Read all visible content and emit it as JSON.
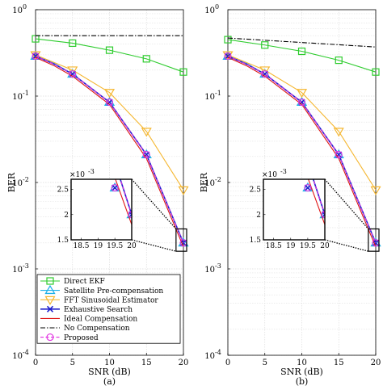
{
  "chart_data": [
    {
      "type": "line",
      "panel_label": "(a)",
      "xlabel": "SNR (dB)",
      "ylabel": "BER",
      "xlim": [
        0,
        20
      ],
      "ylim": [
        0.0001,
        1
      ],
      "yscale": "log",
      "grid": true,
      "xticks": [
        "0",
        "5",
        "10",
        "15",
        "20"
      ],
      "yticks": [
        {
          "base": "10",
          "exp": "0"
        },
        {
          "base": "10",
          "exp": "-1"
        },
        {
          "base": "10",
          "exp": "-2"
        },
        {
          "base": "10",
          "exp": "-3"
        },
        {
          "base": "10",
          "exp": "-4"
        }
      ],
      "legend_position": "bottom-left",
      "series": [
        {
          "name": "Direct EKF",
          "color": "#2ecc2e",
          "marker": "square",
          "dash": "solid",
          "x": [
            0,
            5,
            10,
            15,
            20
          ],
          "y": [
            0.46,
            0.41,
            0.34,
            0.27,
            0.19
          ]
        },
        {
          "name": "Satellite Pre-compensation",
          "color": "#1fb0e8",
          "marker": "triangle-up",
          "dash": "solid",
          "x": [
            0,
            2.5,
            5,
            10,
            15,
            20
          ],
          "y": [
            0.29,
            0.24,
            0.18,
            0.085,
            0.021,
            0.002
          ]
        },
        {
          "name": "FFT Sinusoidal Estimator",
          "color": "#f5b731",
          "marker": "triangle-down",
          "dash": "solid",
          "x": [
            0,
            5,
            10,
            15,
            20
          ],
          "y": [
            0.3,
            0.2,
            0.11,
            0.039,
            0.0082
          ]
        },
        {
          "name": "Exhaustive Search",
          "color": "#1f1fcc",
          "marker": "x",
          "dash": "solid",
          "x": [
            0,
            2.5,
            5,
            10,
            15,
            20
          ],
          "y": [
            0.29,
            0.235,
            0.18,
            0.085,
            0.021,
            0.002
          ]
        },
        {
          "name": "Ideal Compensation",
          "color": "#e01515",
          "marker": "none",
          "dash": "solid",
          "x": [
            0,
            2.5,
            5,
            10,
            15,
            20
          ],
          "y": [
            0.28,
            0.225,
            0.17,
            0.08,
            0.019,
            0.0018
          ]
        },
        {
          "name": "No Compensation",
          "color": "#000000",
          "marker": "none",
          "dash": "dashdot",
          "x": [
            0,
            20
          ],
          "y": [
            0.5,
            0.5
          ]
        },
        {
          "name": "Proposed",
          "color": "#e030e0",
          "marker": "circle",
          "dash": "dashed",
          "x": [
            0,
            2.5,
            5,
            10,
            15,
            20
          ],
          "y": [
            0.29,
            0.235,
            0.18,
            0.085,
            0.021,
            0.002
          ]
        }
      ],
      "inset": {
        "exponent_label": "×10",
        "exponent": "-3",
        "xlim": [
          18.2,
          20
        ],
        "ylim": [
          0.0015,
          0.0027
        ],
        "xticks": [
          "18.5",
          "19",
          "19.5",
          "20"
        ],
        "yticks": [
          "1.5",
          "2",
          "2.5"
        ],
        "zoom_box": {
          "x": [
            19,
            21
          ],
          "y": [
            0.0016,
            0.0029
          ]
        }
      }
    },
    {
      "type": "line",
      "panel_label": "(b)",
      "xlabel": "SNR (dB)",
      "ylabel": "BER",
      "xlim": [
        0,
        20
      ],
      "ylim": [
        0.0001,
        1
      ],
      "yscale": "log",
      "grid": true,
      "xticks": [
        "0",
        "5",
        "10",
        "15",
        "20"
      ],
      "yticks": [
        {
          "base": "10",
          "exp": "0"
        },
        {
          "base": "10",
          "exp": "-1"
        },
        {
          "base": "10",
          "exp": "-2"
        },
        {
          "base": "10",
          "exp": "-3"
        },
        {
          "base": "10",
          "exp": "-4"
        }
      ],
      "series": [
        {
          "name": "Direct EKF",
          "color": "#2ecc2e",
          "marker": "square",
          "dash": "solid",
          "x": [
            0,
            5,
            10,
            15,
            20
          ],
          "y": [
            0.45,
            0.39,
            0.33,
            0.26,
            0.19
          ]
        },
        {
          "name": "Satellite Pre-compensation",
          "color": "#1fb0e8",
          "marker": "triangle-up",
          "dash": "solid",
          "x": [
            0,
            2.5,
            5,
            10,
            15,
            20
          ],
          "y": [
            0.29,
            0.24,
            0.18,
            0.085,
            0.021,
            0.002
          ]
        },
        {
          "name": "FFT Sinusoidal Estimator",
          "color": "#f5b731",
          "marker": "triangle-down",
          "dash": "solid",
          "x": [
            0,
            5,
            10,
            15,
            20
          ],
          "y": [
            0.3,
            0.2,
            0.11,
            0.039,
            0.0082
          ]
        },
        {
          "name": "Exhaustive Search",
          "color": "#1f1fcc",
          "marker": "x",
          "dash": "solid",
          "x": [
            0,
            2.5,
            5,
            10,
            15,
            20
          ],
          "y": [
            0.29,
            0.235,
            0.18,
            0.085,
            0.021,
            0.002
          ]
        },
        {
          "name": "Ideal Compensation",
          "color": "#e01515",
          "marker": "none",
          "dash": "solid",
          "x": [
            0,
            2.5,
            5,
            10,
            15,
            20
          ],
          "y": [
            0.28,
            0.225,
            0.17,
            0.08,
            0.019,
            0.0018
          ]
        },
        {
          "name": "No Compensation",
          "color": "#000000",
          "marker": "none",
          "dash": "dashdot",
          "x": [
            0,
            20
          ],
          "y": [
            0.47,
            0.37
          ]
        },
        {
          "name": "Proposed",
          "color": "#e030e0",
          "marker": "circle",
          "dash": "dashed",
          "x": [
            0,
            2.5,
            5,
            10,
            15,
            20
          ],
          "y": [
            0.29,
            0.235,
            0.18,
            0.085,
            0.021,
            0.002
          ]
        }
      ],
      "inset": {
        "exponent_label": "×10",
        "exponent": "-3",
        "xlim": [
          18.2,
          20
        ],
        "ylim": [
          0.0015,
          0.0027
        ],
        "xticks": [
          "18.5",
          "19",
          "19.5",
          "20"
        ],
        "yticks": [
          "1.5",
          "2",
          "2.5"
        ],
        "zoom_box": {
          "x": [
            19,
            21
          ],
          "y": [
            0.0016,
            0.0029
          ]
        }
      }
    }
  ]
}
